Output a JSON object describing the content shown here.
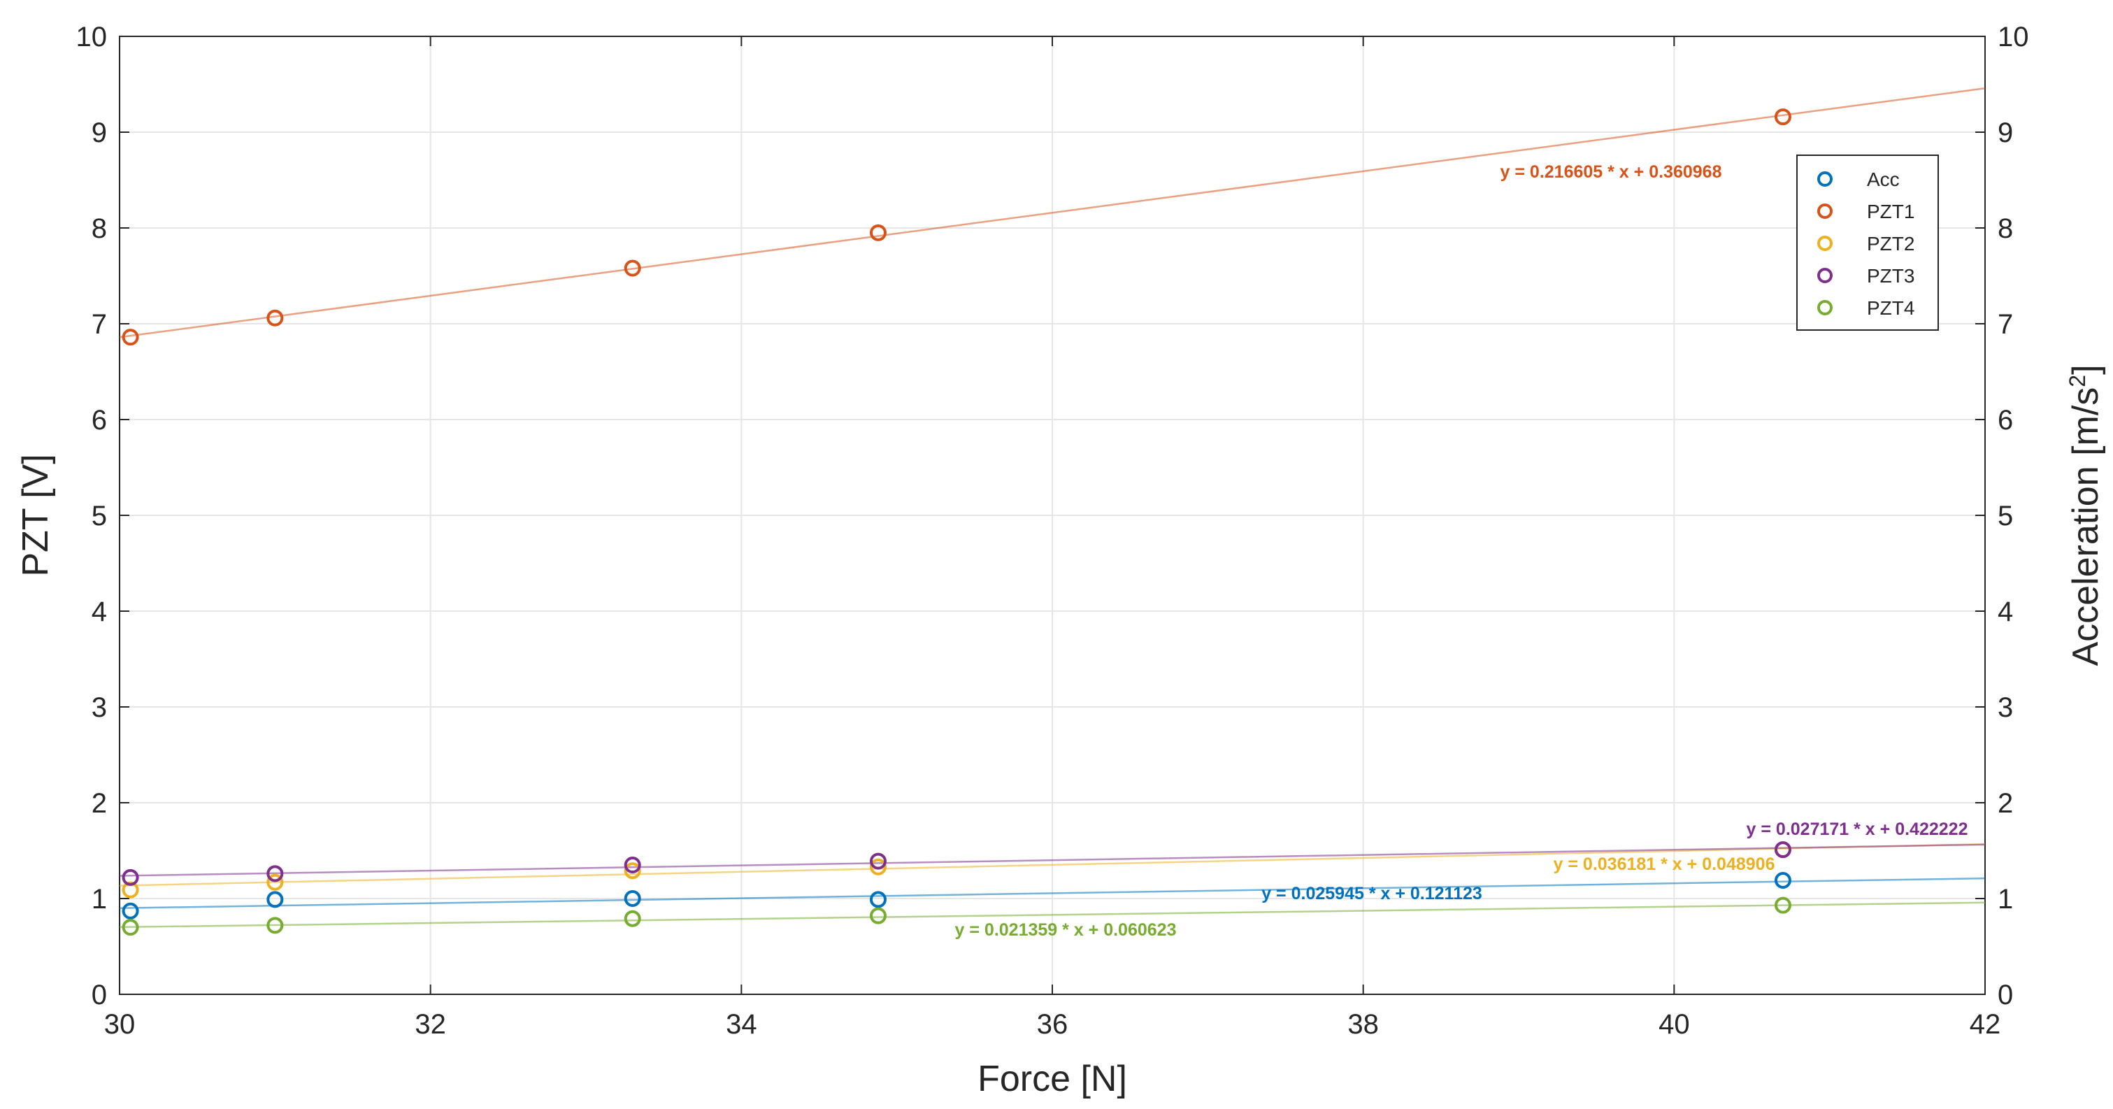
{
  "chart_data": {
    "type": "scatter",
    "xlabel": "Force [N]",
    "ylabel_left": "PZT [V]",
    "ylabel_right_base": "Acceleration [m/s",
    "ylabel_right_sup": "2",
    "ylabel_right_end": "]",
    "xlim": [
      30,
      42
    ],
    "ylim_left": [
      0,
      10
    ],
    "ylim_right": [
      0,
      10
    ],
    "x_ticks": [
      "30",
      "32",
      "34",
      "36",
      "38",
      "40",
      "42"
    ],
    "y_ticks_left": [
      "0",
      "1",
      "2",
      "3",
      "4",
      "5",
      "6",
      "7",
      "8",
      "9",
      "10"
    ],
    "y_ticks_right": [
      "0",
      "1",
      "2",
      "3",
      "4",
      "5",
      "6",
      "7",
      "8",
      "9",
      "10"
    ],
    "grid": true,
    "legend_position": "top-right",
    "x": [
      30.07,
      31.0,
      33.3,
      34.88,
      40.7
    ],
    "series": [
      {
        "name": "Acc",
        "color": "#0072BD",
        "values": [
          0.87,
          0.99,
          1.0,
          0.99,
          1.19
        ],
        "fit": {
          "slope": 0.025945,
          "intercept": 0.121123,
          "label": "y = 0.025945 * x + 0.121123"
        }
      },
      {
        "name": "PZT1",
        "color": "#D95319",
        "values": [
          6.86,
          7.06,
          7.58,
          7.95,
          9.16
        ],
        "fit": {
          "slope": 0.216605,
          "intercept": 0.360968,
          "label": "y = 0.216605 * x + 0.360968"
        }
      },
      {
        "name": "PZT2",
        "color": "#EDB120",
        "values": [
          1.09,
          1.17,
          1.29,
          1.33,
          1.51
        ],
        "fit": {
          "slope": 0.036181,
          "intercept": 0.048906,
          "label": "y = 0.036181 * x + 0.048906"
        }
      },
      {
        "name": "PZT3",
        "color": "#7E2F8E",
        "values": [
          1.22,
          1.26,
          1.35,
          1.39,
          1.51
        ],
        "fit": {
          "slope": 0.027171,
          "intercept": 0.422222,
          "label": "y = 0.027171 * x + 0.422222"
        }
      },
      {
        "name": "PZT4",
        "color": "#77AC30",
        "values": [
          0.7,
          0.72,
          0.79,
          0.82,
          0.93
        ],
        "fit": {
          "slope": 0.021359,
          "intercept": 0.060623,
          "label": "y = 0.021359 * x + 0.060623"
        }
      }
    ]
  }
}
